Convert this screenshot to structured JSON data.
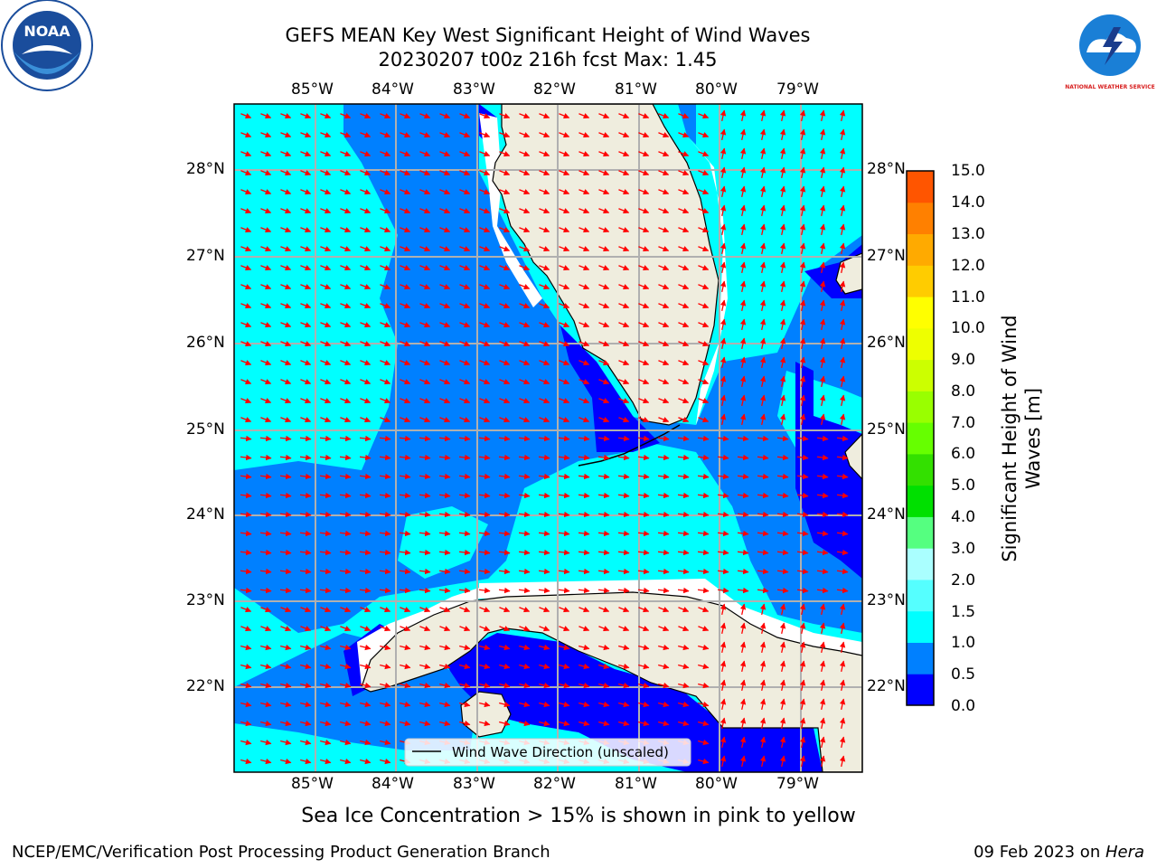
{
  "title": {
    "line1": "GEFS MEAN Key West Significant Height of Wind Waves",
    "line2": "20230207 t00z 216h fcst   Max: 1.45"
  },
  "map": {
    "lon_labels": [
      "85°W",
      "84°W",
      "83°W",
      "82°W",
      "81°W",
      "80°W",
      "79°W"
    ],
    "lat_labels": [
      "28°N",
      "27°N",
      "26°N",
      "25°N",
      "24°N",
      "23°N",
      "22°N"
    ],
    "legend": "Wind Wave Direction (unscaled)",
    "colors": {
      "ocean_light": "#00ffff",
      "ocean_mid": "#0080ff",
      "ocean_deep": "#0000ff",
      "land": "#efedde",
      "arrow": "#ff0000",
      "grid": "#b0b0b0"
    }
  },
  "colorbar": {
    "ticks": [
      "15.0",
      "14.0",
      "13.0",
      "12.0",
      "11.0",
      "10.0",
      "9.0",
      "8.0",
      "7.0",
      "6.0",
      "5.0",
      "4.0",
      "3.0",
      "2.0",
      "1.5",
      "1.0",
      "0.5",
      "0.0"
    ],
    "label_line1": "Significant Height of Wind",
    "label_line2": "Waves [m]",
    "colors": [
      "#0000ff",
      "#0080ff",
      "#00ffff",
      "#55ffff",
      "#aaffff",
      "#55ff80",
      "#00e000",
      "#33e000",
      "#66ff00",
      "#99ff00",
      "#ccff00",
      "#eeff00",
      "#ffff00",
      "#ffcc00",
      "#ffaa00",
      "#ff8000",
      "#ff5500",
      "#ff2a00",
      "#ff0000"
    ]
  },
  "footer": {
    "note": "Sea Ice Concentration > 15% is shown in pink to yellow",
    "left": "NCEP/EMC/Verification Post Processing Product Generation Branch",
    "right_date": "09 Feb 2023 on ",
    "right_host": "Hera"
  },
  "logos": {
    "left": "NOAA",
    "right": "NATIONAL WEATHER SERVICE"
  }
}
